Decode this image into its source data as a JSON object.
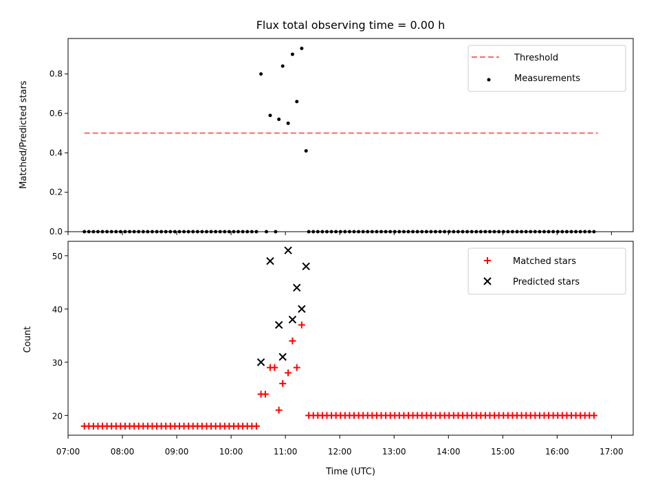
{
  "chart_data": [
    {
      "type": "scatter",
      "title": "Flux total observing time = 0.00 h",
      "xlabel": "",
      "ylabel": "Matched/Predicted stars",
      "xlim_hours": [
        7.0,
        17.4
      ],
      "ylim": [
        0,
        0.98
      ],
      "yticks": [
        0.0,
        0.2,
        0.4,
        0.6,
        0.8
      ],
      "ytick_labels": [
        "0.0",
        "0.2",
        "0.4",
        "0.6",
        "0.8"
      ],
      "threshold": {
        "name": "Threshold",
        "value": 0.5,
        "x_start": 7.3,
        "x_end": 16.75,
        "color": "#ff6666"
      },
      "measurements_name": "Measurements",
      "measurements": {
        "zero_before": {
          "start": 7.3,
          "step": 0.0833,
          "count": 39
        },
        "zero_after": {
          "start": 11.43,
          "step": 0.0833,
          "count": 64
        },
        "points": [
          [
            10.55,
            0.8
          ],
          [
            10.72,
            0.59
          ],
          [
            10.88,
            0.57
          ],
          [
            10.95,
            0.84
          ],
          [
            11.05,
            0.55
          ],
          [
            11.13,
            0.9
          ],
          [
            11.21,
            0.66
          ],
          [
            11.3,
            0.93
          ],
          [
            11.38,
            0.41
          ],
          [
            10.65,
            0.0
          ],
          [
            10.82,
            0.0
          ]
        ]
      },
      "legend_position": "top-right"
    },
    {
      "type": "scatter",
      "title": "",
      "xlabel": "Time (UTC)",
      "ylabel": "Count",
      "xlim_hours": [
        7.0,
        17.4
      ],
      "ylim": [
        16.3,
        52.7
      ],
      "yticks": [
        20,
        30,
        40,
        50
      ],
      "ytick_labels": [
        "20",
        "30",
        "40",
        "50"
      ],
      "xticks": [
        7,
        8,
        9,
        10,
        11,
        12,
        13,
        14,
        15,
        16,
        17
      ],
      "xtick_labels": [
        "07:00",
        "08:00",
        "09:00",
        "10:00",
        "11:00",
        "12:00",
        "13:00",
        "14:00",
        "15:00",
        "16:00",
        "17:00"
      ],
      "matched_name": "Matched stars",
      "predicted_name": "Predicted stars",
      "matched_color": "#ff0000",
      "predicted_color": "#000000",
      "matched": {
        "flat_before": {
          "start": 7.3,
          "step": 0.0833,
          "count": 39,
          "value": 18
        },
        "flat_after": {
          "start": 11.43,
          "step": 0.0833,
          "count": 64,
          "value": 20
        },
        "points": [
          [
            10.55,
            24
          ],
          [
            10.63,
            24
          ],
          [
            10.72,
            29
          ],
          [
            10.8,
            29
          ],
          [
            10.88,
            21
          ],
          [
            10.95,
            26
          ],
          [
            11.05,
            28
          ],
          [
            11.13,
            34
          ],
          [
            11.21,
            29
          ],
          [
            11.3,
            37
          ]
        ]
      },
      "predicted": [
        [
          10.55,
          30
        ],
        [
          10.72,
          49
        ],
        [
          10.88,
          37
        ],
        [
          10.95,
          31
        ],
        [
          11.05,
          51
        ],
        [
          11.13,
          38
        ],
        [
          11.21,
          44
        ],
        [
          11.3,
          40
        ],
        [
          11.38,
          48
        ]
      ],
      "legend_position": "top-right"
    }
  ]
}
